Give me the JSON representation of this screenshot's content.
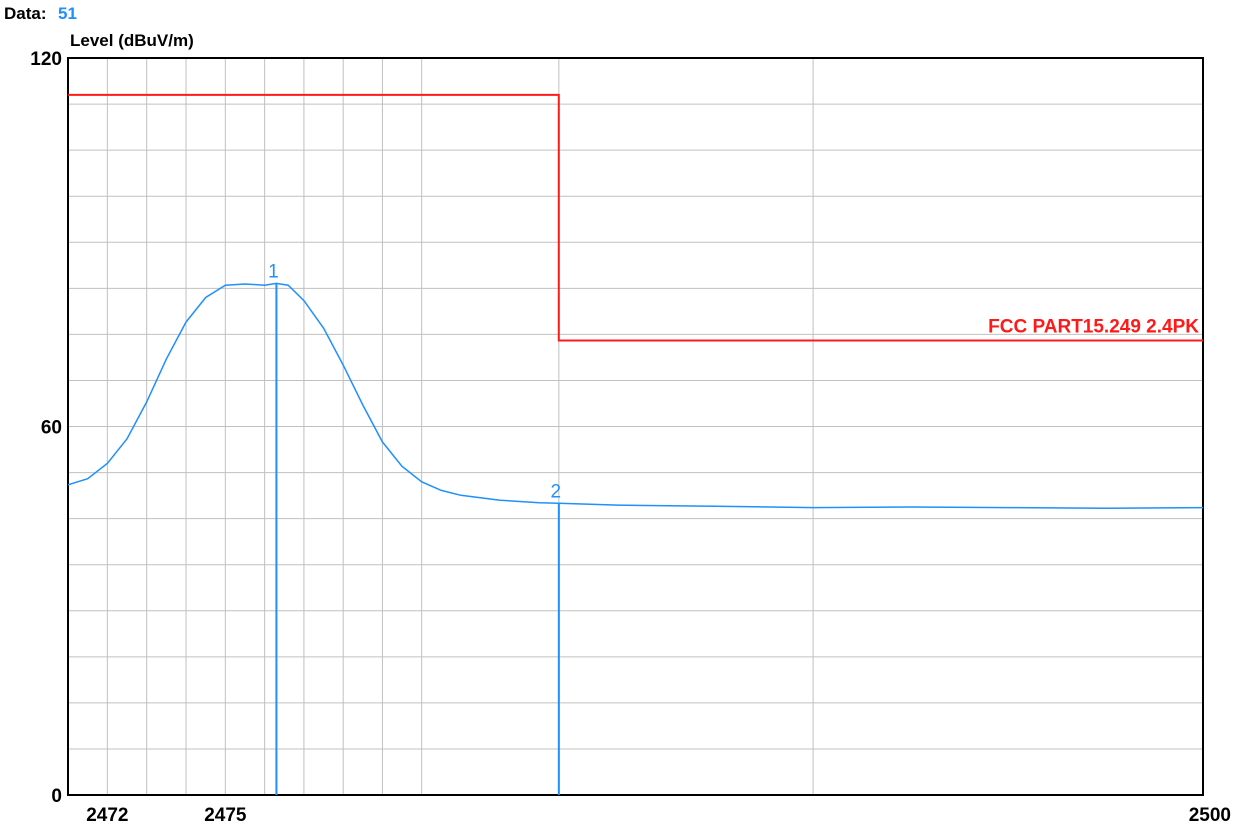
{
  "header": {
    "data_label": "Data:",
    "data_value": "51"
  },
  "chart_data": {
    "type": "line",
    "title": "",
    "xlabel": "",
    "ylabel": "Level (dBuV/m)",
    "xlim": [
      2471,
      2500
    ],
    "ylim": [
      0,
      120
    ],
    "x_scale": "log",
    "y_ticks": [
      0,
      60,
      120
    ],
    "x_ticks": [
      2472,
      2475,
      2500
    ],
    "x_gridlines": [
      2472,
      2473,
      2474,
      2475,
      2476,
      2477,
      2478,
      2479,
      2480,
      2483.5,
      2490
    ],
    "y_gridlines": [
      7.5,
      15,
      22.5,
      30,
      37.5,
      45,
      52.5,
      60,
      67.5,
      75,
      82.5,
      90,
      97.5,
      105,
      112.5
    ],
    "grid": true,
    "series": [
      {
        "kind": "measurement",
        "color": "#1e90ff",
        "x": [
          2471.0,
          2471.5,
          2472.0,
          2472.5,
          2473.0,
          2473.5,
          2474.0,
          2474.5,
          2475.0,
          2475.5,
          2476.0,
          2476.3,
          2476.6,
          2477.0,
          2477.5,
          2478.0,
          2478.5,
          2479.0,
          2479.5,
          2480.0,
          2480.5,
          2481.0,
          2482.0,
          2483.0,
          2483.5,
          2485.0,
          2487.5,
          2490.0,
          2492.5,
          2495.0,
          2497.5,
          2500.0
        ],
        "y": [
          50.5,
          51.5,
          54.0,
          58.0,
          64.0,
          71.0,
          77.0,
          81.0,
          83.0,
          83.2,
          83.0,
          83.3,
          83.0,
          80.5,
          76.0,
          70.0,
          63.5,
          57.5,
          53.5,
          51.0,
          49.6,
          48.8,
          48.0,
          47.6,
          47.5,
          47.2,
          47.0,
          46.8,
          46.9,
          46.8,
          46.7,
          46.8
        ]
      },
      {
        "kind": "limit",
        "name": "FCC PART15.249 2.4PK",
        "color": "#ff1a1a",
        "x": [
          2471.0,
          2483.5,
          2483.5,
          2500.0
        ],
        "y": [
          114.0,
          114.0,
          74.0,
          74.0
        ]
      }
    ],
    "markers": [
      {
        "label": "1",
        "x": 2476.3,
        "y": 83.3,
        "color": "#1e90ff"
      },
      {
        "label": "2",
        "x": 2483.5,
        "y": 47.5,
        "color": "#1e90ff"
      }
    ]
  }
}
